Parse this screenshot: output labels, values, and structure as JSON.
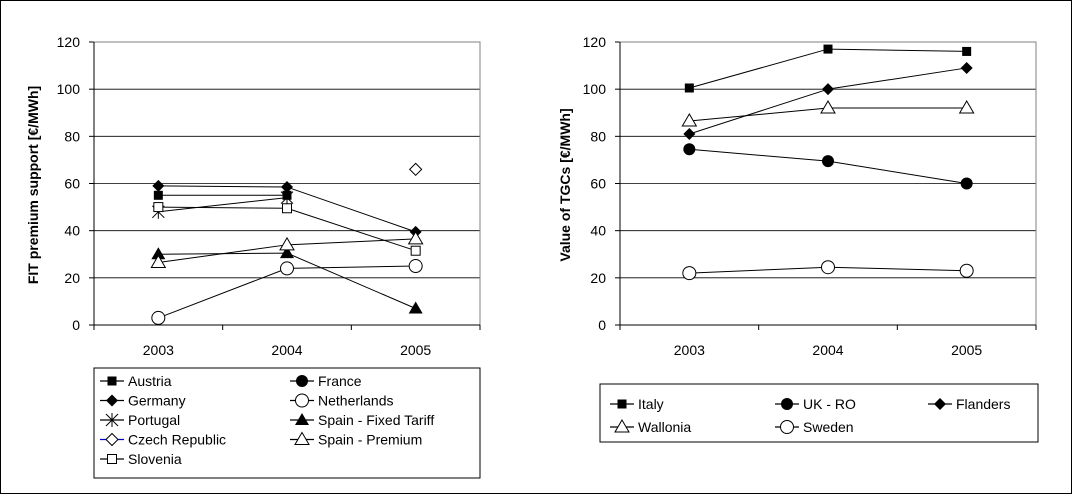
{
  "chart_data": [
    {
      "type": "line",
      "title": "",
      "xlabel": "",
      "ylabel": "FIT premium support [€/MWh]",
      "x": [
        "2003",
        "2004",
        "2005"
      ],
      "ylim": [
        0,
        120
      ],
      "yticks": [
        0,
        20,
        40,
        60,
        80,
        100,
        120
      ],
      "grid": true,
      "legend_position": "bottom",
      "series": [
        {
          "name": "Austria",
          "marker": "square-filled",
          "values": [
            55,
            55,
            null
          ]
        },
        {
          "name": "France",
          "marker": "circle-filled",
          "values": [
            null,
            null,
            null
          ]
        },
        {
          "name": "Germany",
          "marker": "diamond-filled",
          "values": [
            59,
            58.5,
            39.5
          ]
        },
        {
          "name": "Netherlands",
          "marker": "circle-open",
          "values": [
            3,
            24,
            25
          ]
        },
        {
          "name": "Portugal",
          "marker": "asterisk",
          "values": [
            48,
            54,
            null
          ]
        },
        {
          "name": "Spain - Fixed Tariff",
          "marker": "triangle-filled",
          "values": [
            30,
            30.5,
            7
          ]
        },
        {
          "name": "Czech Republic",
          "marker": "diamond-open",
          "values": [
            null,
            null,
            66
          ]
        },
        {
          "name": "Spain - Premium",
          "marker": "triangle-open",
          "values": [
            26.5,
            34,
            36.5
          ]
        },
        {
          "name": "Slovenia",
          "marker": "square-open",
          "values": [
            50,
            49.5,
            31.5
          ]
        }
      ]
    },
    {
      "type": "line",
      "title": "",
      "xlabel": "",
      "ylabel": "Value of TGCs [€/MWh]",
      "x": [
        "2003",
        "2004",
        "2005"
      ],
      "ylim": [
        0,
        120
      ],
      "yticks": [
        0,
        20,
        40,
        60,
        80,
        100,
        120
      ],
      "grid": true,
      "legend_position": "bottom",
      "series": [
        {
          "name": "Italy",
          "marker": "square-filled",
          "values": [
            100.5,
            117,
            116
          ]
        },
        {
          "name": "UK - RO",
          "marker": "circle-filled",
          "values": [
            74.5,
            69.5,
            60
          ]
        },
        {
          "name": "Flanders",
          "marker": "diamond-filled",
          "values": [
            81,
            100,
            109
          ]
        },
        {
          "name": "Wallonia",
          "marker": "triangle-open",
          "values": [
            86.5,
            92,
            92
          ]
        },
        {
          "name": "Sweden",
          "marker": "circle-open",
          "values": [
            22,
            24.5,
            23
          ]
        }
      ]
    }
  ]
}
